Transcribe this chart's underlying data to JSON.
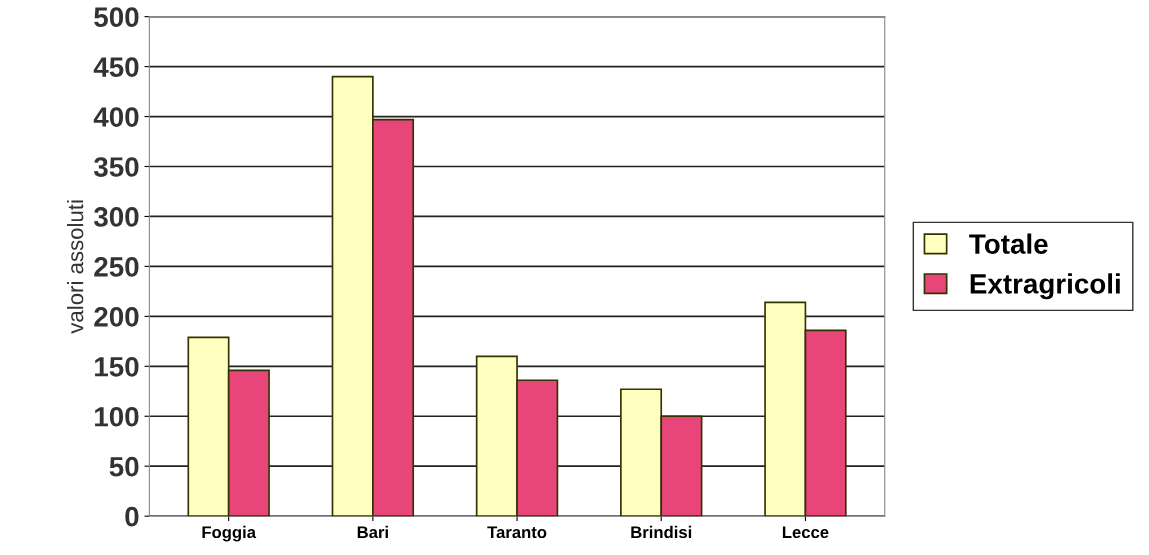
{
  "chart_data": {
    "type": "bar",
    "ylabel": "valori assoluti",
    "categories": [
      "Foggia",
      "Bari",
      "Taranto",
      "Brindisi",
      "Lecce"
    ],
    "series": [
      {
        "name": "Totale",
        "color": "#ffffc0",
        "values": [
          179,
          440,
          160,
          127,
          214
        ]
      },
      {
        "name": "Extragricoli",
        "color": "#e8457a",
        "values": [
          146,
          397,
          136,
          100,
          186
        ]
      }
    ],
    "ylim": [
      0,
      500
    ],
    "yticks": [
      0,
      50,
      100,
      150,
      200,
      250,
      300,
      350,
      400,
      450,
      500
    ],
    "grid": "y",
    "legend": "right"
  }
}
